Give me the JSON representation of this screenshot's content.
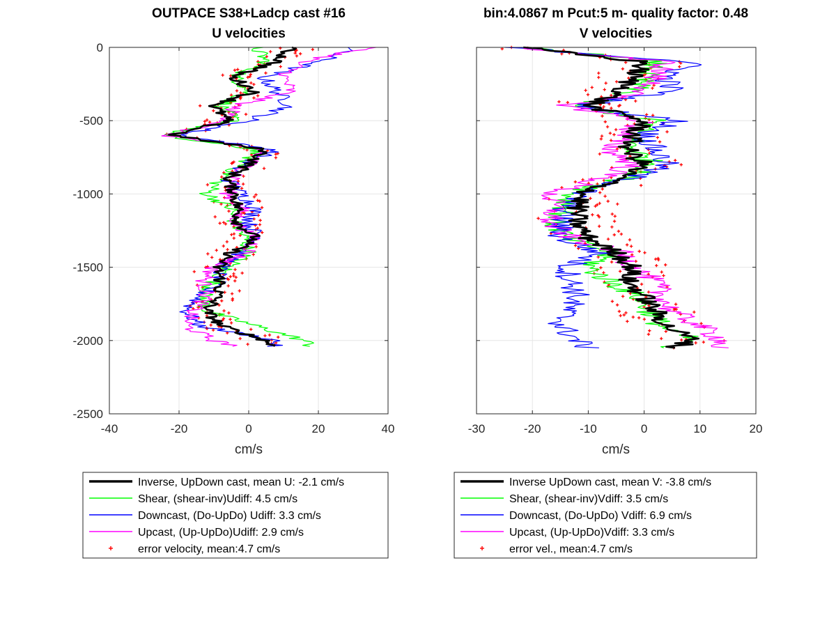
{
  "chart_data": [
    {
      "type": "line",
      "title": "OUTPACE S38+Ladcp cast #16",
      "subtitle": "U velocities",
      "xlabel": "cm/s",
      "ylabel": "",
      "xlim": [
        -40,
        40
      ],
      "ylim": [
        -2500,
        0
      ],
      "xticks": [
        "-40",
        "-20",
        "0",
        "20",
        "40"
      ],
      "yticks": [
        "0",
        "-500",
        "-1000",
        "-1500",
        "-2000",
        "-2500"
      ],
      "grid": true,
      "legend_position": "below",
      "depth": [
        0,
        -100,
        -200,
        -300,
        -400,
        -500,
        -600,
        -700,
        -800,
        -900,
        -1000,
        -1100,
        -1200,
        -1300,
        -1400,
        -1500,
        -1600,
        -1700,
        -1800,
        -1900,
        -2000,
        -2040
      ],
      "series": [
        {
          "key": "inverse",
          "name": "Inverse, UpDown cast, mean U:  -2.1 cm/s",
          "color": "#000000",
          "values": [
            12,
            8,
            -5,
            2,
            -10,
            -6,
            -22,
            5,
            0,
            -6,
            -4,
            -3,
            -3,
            2,
            -5,
            -9,
            -8,
            -9,
            -12,
            -8,
            5,
            7
          ]
        },
        {
          "key": "shear",
          "name": "Shear, (shear-inv)Udiff:  4.5 cm/s",
          "color": "#00ff00",
          "values": [
            2,
            5,
            -4,
            0,
            -8,
            -4,
            -26,
            3,
            -2,
            -8,
            -12,
            -5,
            -4,
            -1,
            0,
            -6,
            -10,
            -13,
            -12,
            2,
            16,
            18
          ]
        },
        {
          "key": "downcast",
          "name": "Downcast, (Do-UpDo) Udiff:  3.3 cm/s",
          "color": "#0000ff",
          "values": [
            30,
            20,
            4,
            8,
            12,
            0,
            -20,
            8,
            -2,
            -6,
            -2,
            2,
            0,
            3,
            -2,
            -8,
            -9,
            -14,
            -18,
            -14,
            8,
            7
          ]
        },
        {
          "key": "upcast",
          "name": "Upcast, (Up-UpDo)Udiff:  2.9 cm/s",
          "color": "#ff00ff",
          "values": [
            35,
            15,
            10,
            12,
            -4,
            -6,
            -24,
            4,
            0,
            -4,
            -6,
            -2,
            -4,
            2,
            0,
            -10,
            -13,
            -12,
            -16,
            -18,
            -10,
            -3
          ]
        }
      ],
      "error_velocity": {
        "name": "error velocity, mean:4.7 cm/s",
        "color": "#ff0000",
        "mean": 4.7
      }
    },
    {
      "type": "line",
      "title": "bin:4.0867 m  Pcut:5 m- quality factor:  0.48",
      "subtitle": "V velocities",
      "xlabel": "cm/s",
      "ylabel": "",
      "xlim": [
        -30,
        20
      ],
      "ylim": [
        -2500,
        0
      ],
      "xticks": [
        "-30",
        "-20",
        "-10",
        "0",
        "10",
        "20"
      ],
      "yticks": [],
      "grid": true,
      "legend_position": "below",
      "depth": [
        0,
        -100,
        -200,
        -300,
        -400,
        -500,
        -600,
        -700,
        -800,
        -900,
        -1000,
        -1100,
        -1200,
        -1300,
        -1400,
        -1500,
        -1600,
        -1700,
        -1800,
        -1900,
        -2000,
        -2050
      ],
      "series": [
        {
          "key": "inverse",
          "name": "Inverse UpDown cast, mean V:  -3.8 cm/s",
          "color": "#000000",
          "values": [
            -22,
            0,
            -2,
            -4,
            -10,
            0,
            -2,
            -3,
            0,
            -5,
            -11,
            -12,
            -12,
            -10,
            -5,
            -2,
            -3,
            0,
            2,
            4,
            9,
            5
          ]
        },
        {
          "key": "shear",
          "name": "Shear, (shear-inv)Vdiff:  3.5 cm/s",
          "color": "#00ff00",
          "values": [
            -20,
            2,
            0,
            -2,
            -12,
            2,
            -2,
            -2,
            2,
            -4,
            -13,
            -14,
            -16,
            -14,
            -6,
            -10,
            -6,
            -1,
            1,
            3,
            9,
            2
          ]
        },
        {
          "key": "downcast",
          "name": "Downcast, (Do-UpDo) Vdiff:  6.9 cm/s",
          "color": "#0000ff",
          "values": [
            -24,
            9,
            4,
            5,
            -12,
            6,
            0,
            2,
            4,
            -3,
            -12,
            -14,
            -15,
            -15,
            -8,
            -14,
            -13,
            -12,
            -14,
            -15,
            -12,
            -10
          ]
        },
        {
          "key": "upcast",
          "name": "Upcast, (Up-UpDo)Vdiff:  3.3 cm/s",
          "color": "#ff00ff",
          "values": [
            -22,
            4,
            2,
            0,
            -14,
            0,
            -4,
            -6,
            -2,
            -8,
            -17,
            -16,
            -17,
            -13,
            -4,
            -2,
            2,
            3,
            5,
            10,
            14,
            13
          ]
        }
      ],
      "error_velocity": {
        "name": "error vel., mean:4.7 cm/s",
        "color": "#ff0000",
        "mean": 4.7
      }
    }
  ]
}
